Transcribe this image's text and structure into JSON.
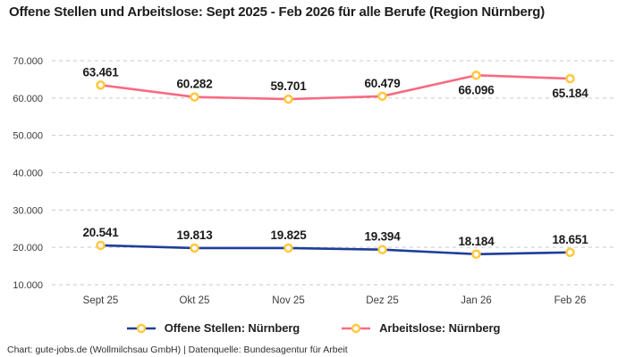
{
  "header": {
    "title": "Offene Stellen und Arbeitslose: Sept 2025 - Feb 2026 für alle Berufe (Region Nürnberg)"
  },
  "footer": {
    "attribution": "Chart: gute-jobs.de (Wollmilchsau GmbH) | Datenquelle: Bundesagentur für Arbeit"
  },
  "chart_data": {
    "type": "line",
    "title": "Offene Stellen und Arbeitslose: Sept 2025 - Feb 2026 für alle Berufe (Region Nürnberg)",
    "categories": [
      "Sept 25",
      "Okt 25",
      "Nov 25",
      "Dez 25",
      "Jan 26",
      "Feb 26"
    ],
    "series": [
      {
        "name": "Offene Stellen: Nürnberg",
        "color": "#1f3d99",
        "values": [
          20541,
          19813,
          19825,
          19394,
          18184,
          18651
        ],
        "labels": [
          "20.541",
          "19.813",
          "19.825",
          "19.394",
          "18.184",
          "18.651"
        ],
        "label_placement": [
          "above",
          "above",
          "above",
          "above",
          "above",
          "above"
        ]
      },
      {
        "name": "Arbeitslose: Nürnberg",
        "color": "#f76b82",
        "values": [
          63461,
          60282,
          59701,
          60479,
          66096,
          65184
        ],
        "labels": [
          "63.461",
          "60.282",
          "59.701",
          "60.479",
          "66.096",
          "65.184"
        ],
        "label_placement": [
          "above",
          "above",
          "above",
          "above",
          "below",
          "below"
        ]
      }
    ],
    "xlabel": "",
    "ylabel": "",
    "ylim": [
      10000,
      70000
    ],
    "yticks": [
      {
        "value": 10000,
        "label": "10.000"
      },
      {
        "value": 20000,
        "label": "20.000"
      },
      {
        "value": 30000,
        "label": "30.000"
      },
      {
        "value": 40000,
        "label": "40.000"
      },
      {
        "value": 50000,
        "label": "50.000"
      },
      {
        "value": 60000,
        "label": "60.000"
      },
      {
        "value": 70000,
        "label": "70.000"
      }
    ],
    "grid": "horizontal-dashed",
    "legend_position": "bottom-center",
    "marker_style": {
      "fill": "#ffffff",
      "stroke": "#ffc83d"
    },
    "colors": {
      "grid": "#c9c9c9",
      "axis_text": "#3c3c3c",
      "label_text": "#1a1a1a"
    }
  }
}
